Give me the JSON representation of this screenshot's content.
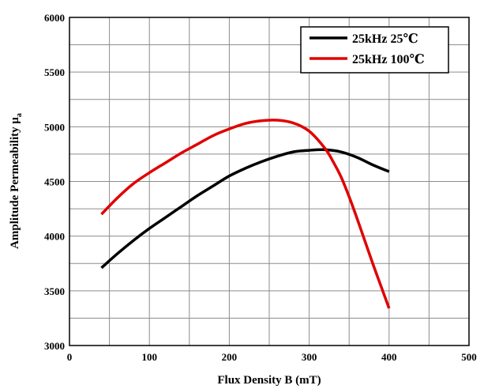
{
  "chart_data": {
    "type": "line",
    "xlabel": "Flux Density B (mT)",
    "ylabel": "Amplitude Permeability μ",
    "ylabel_sub": "a",
    "xlim": [
      0,
      500
    ],
    "ylim": [
      3000,
      6000
    ],
    "xticks": [
      0,
      100,
      200,
      300,
      400,
      500
    ],
    "yticks": [
      3000,
      3500,
      4000,
      4500,
      5000,
      5500,
      6000
    ],
    "grid": true,
    "legend_position": "top-right",
    "series": [
      {
        "name": "25kHz 25℃",
        "color": "#000000",
        "x": [
          40,
          60,
          80,
          100,
          120,
          140,
          160,
          180,
          200,
          220,
          240,
          260,
          280,
          300,
          320,
          340,
          360,
          380,
          400
        ],
        "y": [
          3710,
          3840,
          3960,
          4070,
          4170,
          4270,
          4370,
          4460,
          4550,
          4620,
          4680,
          4730,
          4770,
          4785,
          4790,
          4770,
          4720,
          4650,
          4590
        ]
      },
      {
        "name": "25kHz 100℃",
        "color": "#e00000",
        "x": [
          40,
          60,
          80,
          100,
          120,
          140,
          160,
          180,
          200,
          220,
          240,
          260,
          280,
          300,
          320,
          330,
          340,
          350,
          360,
          370,
          380,
          390,
          400
        ],
        "y": [
          4200,
          4350,
          4480,
          4580,
          4670,
          4760,
          4840,
          4920,
          4980,
          5030,
          5055,
          5060,
          5035,
          4960,
          4800,
          4680,
          4540,
          4360,
          4160,
          3950,
          3740,
          3540,
          3340
        ]
      }
    ]
  }
}
